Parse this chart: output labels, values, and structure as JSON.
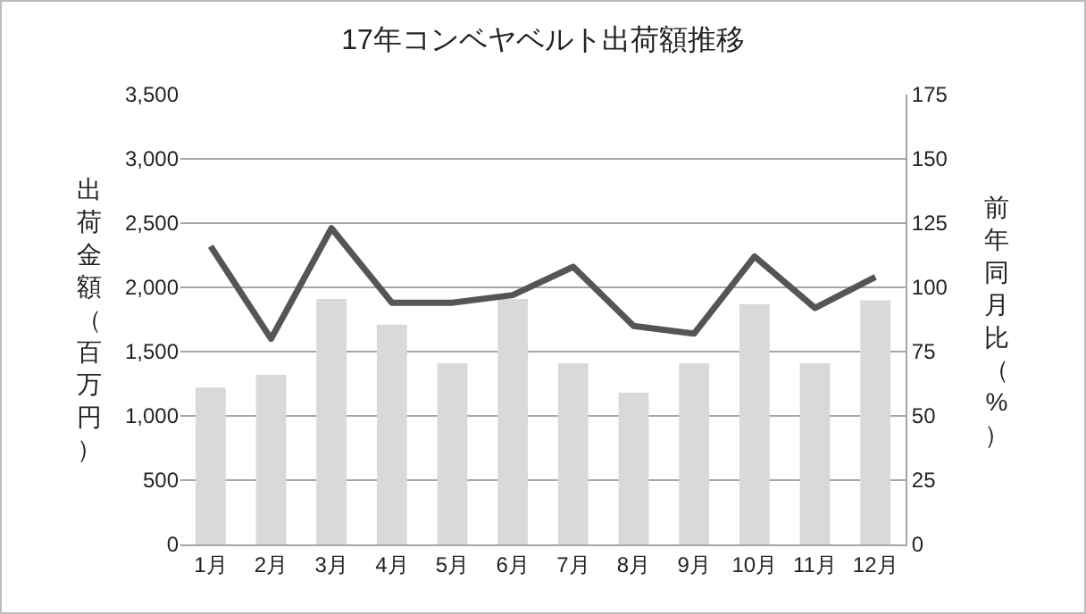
{
  "chart_data": {
    "type": "bar",
    "title": "17年コンベヤベルト出荷額推移",
    "ylabel": "出荷金額（百万円）",
    "y2label": "前年同月比（%）",
    "categories": [
      "1月",
      "2月",
      "3月",
      "4月",
      "5月",
      "6月",
      "7月",
      "8月",
      "9月",
      "10月",
      "11月",
      "12月"
    ],
    "series": [
      {
        "color": "#d9d9d9",
        "values": [
          1220,
          1320,
          1910,
          1710,
          1410,
          1910,
          1410,
          1180,
          1410,
          1870,
          1410,
          1900
        ]
      },
      {
        "type": "line",
        "axis": "y2",
        "color": "#555555",
        "values": [
          116,
          80,
          123,
          94,
          94,
          97,
          108,
          85,
          82,
          112,
          92,
          104
        ]
      }
    ],
    "ylim": [
      0,
      3500
    ],
    "yticks": [
      {
        "value": 0,
        "label": "0"
      },
      {
        "value": 500,
        "label": "500"
      },
      {
        "value": 1000,
        "label": "1,000"
      },
      {
        "value": 1500,
        "label": "1,500"
      },
      {
        "value": 2000,
        "label": "2,000"
      },
      {
        "value": 2500,
        "label": "2,500"
      },
      {
        "value": 3000,
        "label": "3,000"
      },
      {
        "value": 3500,
        "label": "3,500"
      }
    ],
    "y2lim": [
      0,
      175
    ],
    "y2ticks": [
      0,
      25,
      50,
      75,
      100,
      125,
      150,
      175
    ],
    "grid": "y",
    "marker": "none",
    "line_style": "solid"
  }
}
